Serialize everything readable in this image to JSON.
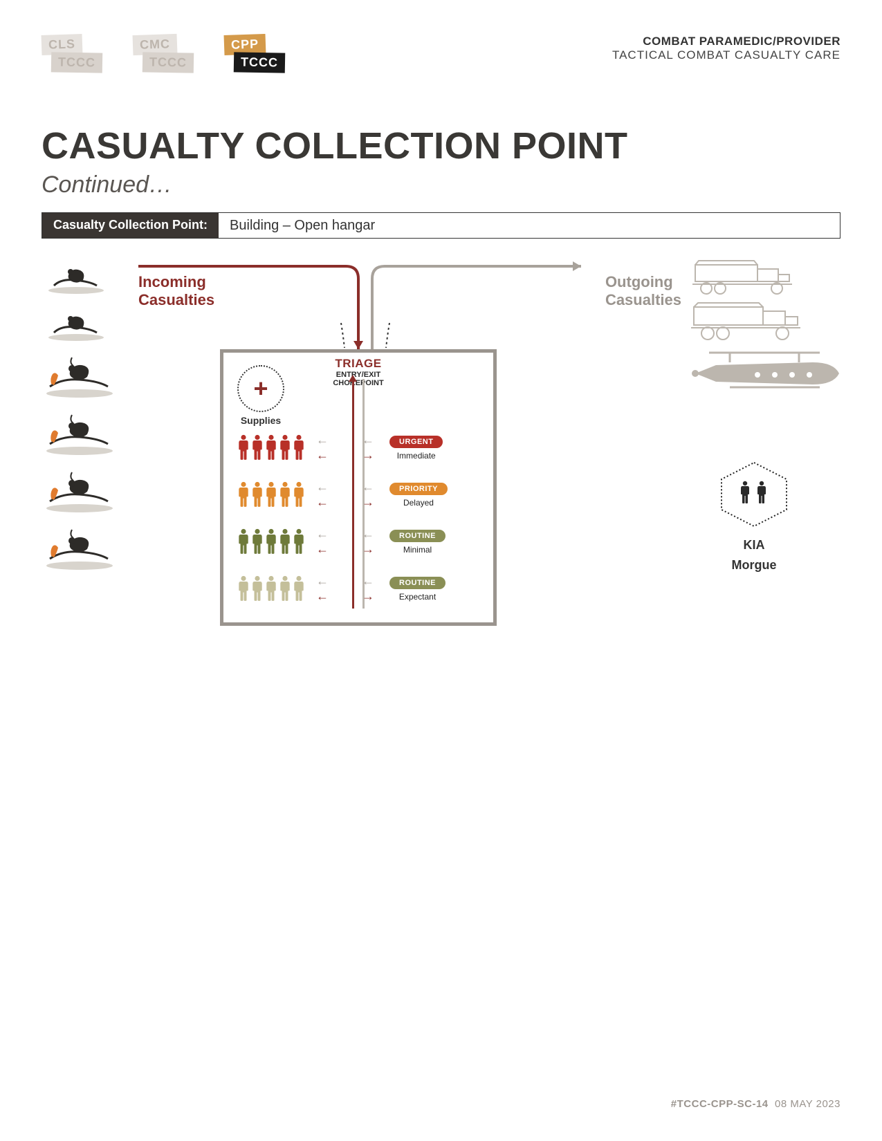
{
  "header": {
    "badges": [
      {
        "top": "CLS",
        "bottom": "TCCC",
        "active": false
      },
      {
        "top": "CMC",
        "bottom": "TCCC",
        "active": false
      },
      {
        "top": "CPP",
        "bottom": "TCCC",
        "active": true
      }
    ],
    "right_bold": "COMBAT PARAMEDIC/PROVIDER",
    "right_sub": "TACTICAL COMBAT CASUALTY CARE"
  },
  "title": "CASUALTY COLLECTION POINT",
  "subtitle": "Continued…",
  "bar": {
    "label": "Casualty Collection Point:",
    "value": "Building – Open hangar"
  },
  "flow": {
    "incoming_label": "Incoming\nCasualties",
    "outgoing_label": "Outgoing\nCasualties",
    "incoming_color": "#8b2e2a",
    "outgoing_color": "#a8a29b"
  },
  "triage": {
    "title": "TRIAGE",
    "sub1": "ENTRY/EXIT",
    "sub2": "CHOKEPOINT",
    "supplies_label": "Supplies",
    "categories": [
      {
        "badge": "URGENT",
        "sub": "Immediate",
        "color": "#b83028",
        "badge_bg": "#b83028",
        "people": 5
      },
      {
        "badge": "PRIORITY",
        "sub": "Delayed",
        "color": "#e08a2e",
        "badge_bg": "#e08a2e",
        "people": 5
      },
      {
        "badge": "ROUTINE",
        "sub": "Minimal",
        "color": "#6e7a3a",
        "badge_bg": "#8a8f55",
        "people": 5
      },
      {
        "badge": "ROUTINE",
        "sub": "Expectant",
        "color": "#c4bf9a",
        "badge_bg": "#8a8f55",
        "people": 5
      }
    ],
    "arrow_in_color": "#a8a29b",
    "arrow_out_color": "#8b2e2a"
  },
  "kia": {
    "title": "KIA",
    "sub": "Morgue",
    "people_color": "#2a2a2a"
  },
  "casualty_icons": {
    "count_single": 2,
    "count_double": 4,
    "body_color": "#2d2b28",
    "fire_color": "#e07b2e",
    "ground_color": "#d8d4cd"
  },
  "vehicles": {
    "truck_color": "#bcb6ae",
    "heli_color": "#bcb6ae"
  },
  "styling": {
    "page_bg": "#ffffff",
    "title_color": "#3a3835",
    "border_gray": "#9a948e",
    "bar_dark_bg": "#3a3532"
  },
  "footer": {
    "code": "#TCCC-CPP-SC-14",
    "date": "08 MAY 2023"
  }
}
